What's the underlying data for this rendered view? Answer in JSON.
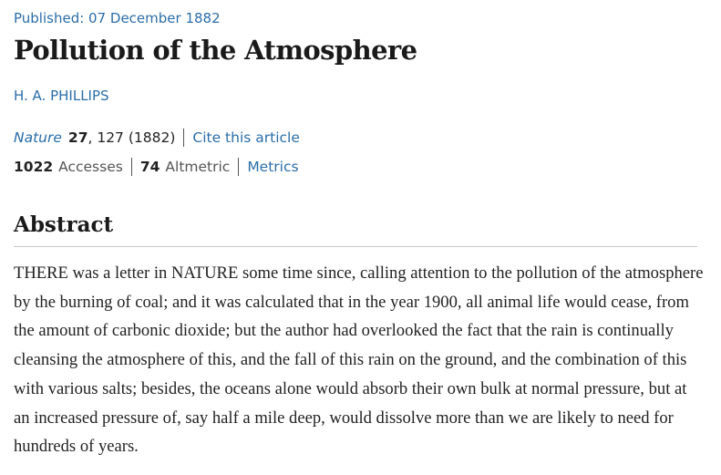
{
  "article": {
    "published": "Published: 07 December 1882",
    "title": "Pollution of the Atmosphere",
    "author": "H. A. PHILLIPS",
    "citation": {
      "journal": "Nature",
      "volume": "27",
      "rest": ", 127 (1882)",
      "cite_link": "Cite this article"
    },
    "metrics": {
      "accesses_count": "1022",
      "accesses_label": "Accesses",
      "altmetric_count": "74",
      "altmetric_label": "Altmetric",
      "metrics_link": "Metrics"
    },
    "abstract": {
      "heading": "Abstract",
      "text": "THERE was a letter in NATURE some time since, calling attention to the pollution of the atmosphere by the burning of coal; and it was calculated that in the year 1900, all animal life would cease, from the amount of carbonic dioxide; but the author had overlooked the fact that the rain is continually cleansing the atmosphere of this, and the fall of this rain on the ground, and the combination of this with various salts; besides, the oceans alone would absorb their own bulk at normal pressure, but at an increased pressure of, say half a mile deep, would dissolve more than we are likely to need for hundreds of years."
    }
  },
  "colors": {
    "link": "#2b6ea8",
    "text": "#222222",
    "rule": "#c8c8c8"
  }
}
